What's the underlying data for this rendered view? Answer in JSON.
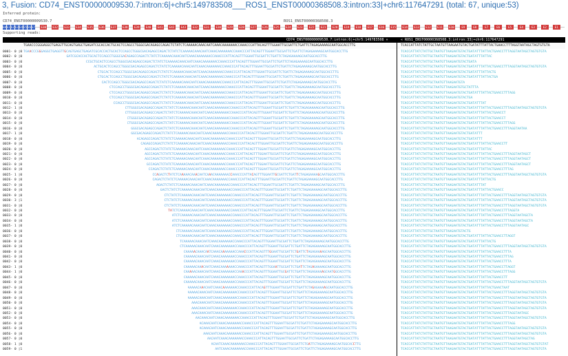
{
  "title": "3, Fusion: CD74_ENST00000009530.7:intron:6|+chr5:149783508___ROS1_ENST00000368508.3:intron:33|+chr6:117647291 (total: 67, unique:53)",
  "inferred_protein_label": "Inferred protein:",
  "transcript_left": "CD74_ENST00000009530.7",
  "transcript_right": "ROS1_ENST00000368508.3",
  "supporting_reads_label": "Supporting reads:",
  "exons_left": [
    "E0",
    "E1",
    "E2",
    "E3",
    "E4",
    "E5",
    "E6",
    "E7"
  ],
  "exons_right": [
    "E30",
    "E32",
    "E33",
    "E34",
    "E35",
    "E36",
    "E37",
    "E38",
    "E39",
    "E40",
    "E41",
    "E42",
    "E43",
    "E32",
    "E31",
    "E30",
    "E29",
    "E28",
    "E27",
    "E26",
    "E25",
    "E24",
    "E23",
    "E22",
    "E21",
    "E20",
    "E19",
    "E18",
    "E17",
    "E16",
    "E15",
    "E14",
    "E13",
    "E12",
    "E11",
    "E10",
    "E9",
    "E8",
    "E7",
    "E6",
    "E5",
    "E4",
    "E3",
    "E2",
    "E1"
  ],
  "header_left": "CD74_ENST00000009530.7:intron:6|+chr5:149783508 »",
  "header_right": "« ROS1_ENST00000368508.3:intron:33|+chr6:117647291",
  "ref_left": "TGAACCCGGGAGGCTGAGGTTGCAGTGAGCTGAGATCGCACCACTGCACTCCAGCCTGGGCGACAGAGCCAGACTCTATCTCAAAAACAAACAATCAAACAAAAAAACCAAACCCATTACAGTTTGGAATTGCGATTCTGATTCTAGAGAAAAGCAATGGCACCTTG",
  "ref_right": "TCACCATTATCTATTGCTAATGTTAAGAATGTACTGATATTTATTACTGAACCTTTAGGTAATAGCTAGTGTGTA",
  "reads": [
    {
      "id": "0001- 0 |0",
      "s": 0,
      "l": "TGAACCCGGGAGGCTGAGGTTGCAGTGAGCTGAGATCGCACCACTGCACTCCAGCCTGGGCGACAGAGCCAGACTCTATCTCAAAAACAAACAATCAAACAAAAAAACCAAACCCATTACAGTTTGGAATTGCGATTCTGATTCTAGAGAAAAGCAATGGCACCTTG",
      "r": "TCACCATTATCTATTGCTAATGTTAAGAATGTACTGATATTTATTACTGAACCTTTAGGTAATAGCTAGTGTGTA",
      "m": [
        3,
        8,
        21
      ]
    },
    {
      "id": "0002- 0 |0",
      "s": 22,
      "l": "GATCGCACCACTGCACTCCAGCCTGGGCGACAGAGCCAGACTCTATCTCAAAAACAAACAATCAAACAAAAAAACCAAACCCATTACAGTTTGGAATTGCGATTCTGATTCTAGAGAAAAGCAATGGCACCTTG",
      "r": "TCACCATTATCTATTGCTAATGTTAAGAATGTACTGATATTTATTAC",
      "m": [
        30
      ]
    },
    {
      "id": "0003- 0 |0",
      "s": 32,
      "l": "CCGCTGCACTCCAGCCTGGGCGACAGAGCCAGACTCTATCTCAAAAACAAACAATCAAACAAAAAAACCAAACCCATTACAGTTTGGAATTGCGATTCTGATTCTAGAGAAAAGCAATGGCACCTTG",
      "r": "TCACCATTATCTATTGCTAATGTTAAGAATGTACTGATA",
      "m": []
    },
    {
      "id": "0004- 0 |0",
      "s": 36,
      "l": "ACTGCACTCCAGCCTGGGCGACAGAGCCAGACTCTATCTCAAAAACAAACAATCAAACAAAAAAACCAAACCCATTACAGTTTGGAATTGCGATTCTGATTCTAGAGAAAAGCAATGGCACCTTG",
      "r": "TCACCATTATCTATTGCTAATGTTAAGAATGTACTGATATTTATTACTGAACCTTTAGGTAATAGCTAGTGTGTA",
      "m": []
    },
    {
      "id": "0005- 0 |0",
      "s": 38,
      "l": "CTGCACTCCAGCCTGGGCGACAGAGCCAGACTCTATCTCAAAAACAAACAATCAAACAAAAAAACCAAACCCATTACAGTTTGGAATTGCGATTCTGATTCTAGAGAAAAGCAATGGCACCTTG",
      "r": "TCACCATTATCTATTGCTAATGTTAAGAATGTACTGATATTTATTACTG",
      "m": []
    },
    {
      "id": "0006- 0 |0",
      "s": 38,
      "l": "CTGCACTCCAGCCTGGGCGACAGAGCCAGACTCTATCTCAAAAACAAACAATCAAACAAAAAAACCAAACCCATTACAGTTTGGAATTGCGATTCTGATTCTAGAGAAAAGCAATGGCACCTTG",
      "r": "TCACCATTATCTATTGCTAATGTTAAGAATGTACTGATATTTATTACTGA",
      "m": []
    },
    {
      "id": "0007- 0 |0",
      "s": 40,
      "l": "CACTCCAGCCTGGGCGACAGAGCCAGACTCTATCTCAAAAACAAACAATCAAACAAAAAAACCAAACCCATTACAGTTTGGAATTGCGATTCTGATTCTAGAGAAAAGCAATGGCACCTTG",
      "r": "TCACCATTATCTATTGCTAATGTTAAGAATGTA",
      "m": []
    },
    {
      "id": "0008- 0 |0",
      "s": 44,
      "l": "CTCCAGCCTGGGCGACAGAGCCAGACTCTATCTCAAAAACAAACAATCAAACAAAAAAACCAAACCCATTACAGTTTGGAATTGCGATTCTGATTCTAGAGAAAAGCAATGGCACCTTG",
      "r": "TCACCATTATCTATTGCTAATGTTAAGAATGTGCTATTTA",
      "m": []
    },
    {
      "id": "0009- 0 |0",
      "s": 44,
      "l": "CTCCAGCCTGGGCGACAGAGCCAGACTCTATCTCAAAAACAAACAATCAAACAAAAAAACCAAACCCATTACAGTTTGGAATTGCGATTCTGATTCTAGAGAAAAGCAATGGCACCTTG",
      "r": "TCACCATTATCTATTGCTAATGTTAAGAATGTACTGATATTTATTACTGAACCTTTAGG",
      "m": []
    },
    {
      "id": "0010- 0 |0",
      "s": 44,
      "l": "CTCCAGCCTGGGCGACAGAGCCAGACTCTATCTCAAAAACAAACAATCAAACAAAAAAACCAAACCCATTACAGTTTGGAATTGCGATTCTGATTCTAGAGAAAAGCAATGGCACCTTG",
      "r": "TCACCATTATCTATTGCTAATGTTAAGAATGTACTGA",
      "m": []
    },
    {
      "id": "0011- 0 |0",
      "s": 46,
      "l": "CCAGCCTGGGCGACAGAGCCAGACTCTATCTCAAAAACAAACAATCAAACAAAAAAACCAAACCCATTACAGTTTGGAATTGCGATTCTGATTCTAGAGAAAAGCAATGGCACCTTG",
      "r": "TCACCATTATCTATTGCTAATGTTAAGAATGTACTGATATTTAT",
      "m": []
    },
    {
      "id": "0012- 1 |0",
      "s": 52,
      "l": "CTTGGGCGACAGAGCCAGACTCTATCTCAAAAACAAACAATCAAACAAAAAAACCAAACCCATTACAGTTTGGAATTGCGATTCTGATTCTAGAGAAAAGCAATGGCACCTTG",
      "r": "TCACCATTATCTATTGCTAATGTTAAGAATGTACTGATATTTATTACTGAACCTTTAGGTAATAGCTAGTGTGTA",
      "m": []
    },
    {
      "id": "0013- 0 |0",
      "s": 52,
      "l": "CTTGGGCGACAGAGCCAGACTCTATCTCAAAAACAAACAATCAAACAAAAAAACCAAACCCATTACAGTTTGGAATTGCGATTCTGATTCTAGAGAAAAGCAATGGCACCTTG",
      "r": "TCACCATTATCTATTGCTAATGTTAAGAATGTACTGATATTTATTACTGAACCT",
      "m": []
    },
    {
      "id": "0014- 0 |0",
      "s": 53,
      "l": "CTGGGCGACAGAGCCAGACTCTATCTCAAAAACAAACAATCAAACAAAAAAACCAAACCCATTACAGTTTGGAATTGCGATTCTGATTCTAGAGAAAAGCAATGGCACCTTG",
      "r": "TCACCATTATCTATTGCTAATGTTAAGAATGTACTGATATTTATTACTGAACCT",
      "m": []
    },
    {
      "id": "0015- 0 |0",
      "s": 53,
      "l": "CTGGGCGACAGAGCCAGACTCTATCTCAAAAACAAACAATCAAACAAAAAAACCAAACCCATTACAGTTTGGAATTGCGATTCTGATTCTAGAGAAAAGCAATGGCACCTTG",
      "r": "TCACCATTATCTATTGCTAATGTTAAGAATGTACTGATATTTATTACTGAACCTTTAGG",
      "m": []
    },
    {
      "id": "0016- 0 |0",
      "s": 55,
      "l": "GGGCGACAGAGCCAGACTCTATCTCAAAAACAAACAATCAAACAAAAAAACCAAACCCATTACAGTTTGGAATTGCGATTCTGATTCTAGAGAAAAGCAATGGCACCTTG",
      "r": "TCACCATTATCTATTGCTAATGTTAAGAATGTACTGATATTTATTACTGAACCTTTAGGTAATAA",
      "m": []
    },
    {
      "id": "0017- 1 |0",
      "s": 55,
      "l": "GGCGACAGAGCCAGACTCTATCTCAAAAACAAACAATCAAACAAAAAAACCAAACCCATTACAGTTTGGAATTGCGATTCTGATTCTAGAGAAAAGCAATGGCACCTTG",
      "r": "TCACCATTATCTATTGCTAATGTTAAGAATGTACTGATATTT",
      "m": []
    },
    {
      "id": "0018- 0 |0",
      "s": 58,
      "l": "ACAGAGCCAGACTCTATCTCAAAAACAAACAATCAAACAAAAAAACCAAACCCATTACAGTTTGGAATTGCGATTCTGATTCTAGAGAAAAGCAATGGCACCTTG",
      "r": "TCACCATTATCTATTGCTAATGTTAAGAATGTACTGATATTT",
      "m": []
    },
    {
      "id": "0019- 0 |0",
      "s": 60,
      "l": "CAGAGCCAGACTCTATCTCAAAAACAAACAATCAAACAAAAAAACCAAACCCATTACAGTTTGGAATTGCGATTCTGATTCTAGAGAAAAGCAATGGCACCTTG",
      "r": "TCACCATTATCTATTGCTAATGTTAAGAATGTACTGATATTTATTACTGAACCTT",
      "m": []
    },
    {
      "id": "0020- 0 |0",
      "s": 62,
      "l": "AGCCAGACTCTATCTCAAAAACAAACAATCAAACAAAAAAACCAAACCCATTACAGTTTGGAATTGCGATTCTGATTCTAGAGAAAAGCAATGGCACCTTG",
      "r": "TCACCATTATCTATTGCTAATGTTAAGAATGTACTGATATTTATTAC",
      "m": []
    },
    {
      "id": "0021- 0 |0",
      "s": 62,
      "l": "AGCCAGACTCTATCTCAAAAACAAACAATCAAACAAAAAAACCAAACCCATTACAGTTTGGAATTGCGATTCTGATTCTAGAGAAAAGCAATGGCACCTTG",
      "r": "TCACCATTATCTATTGCTAATGTTAAGAATGTACTGATATTTATTACTGAACCTTTAGGTAATAGCT",
      "m": []
    },
    {
      "id": "0022- 0 |0",
      "s": 62,
      "l": "AGCCAGACTCTATCTCAAAAACAAACAATCAAACAAAAAAACCAAACCCATTACAGTTTGGAATTGCGATTCTGATTCTAGAGAAAAGCAATGGCACCTTG",
      "r": "TCACCATTATCTATTGCTAATGTTAAGAATGTACTGATATTTATTACTGAACCTTTAGGTAATAGCT",
      "m": []
    },
    {
      "id": "0023- 0 |0",
      "s": 63,
      "l": "GCCAGACTCTATCTCAAAAACAAACAATCAAACAAAAAAACCAAACCCATTACAGTTTGGAATTGCGATTCTGATTCTAGAGAAAAGCAATGGCACCTTG",
      "r": "TCACCATTATCTATTGCTAATGTTAAGAATGTACTGATATTTATTACTGAACCTTTAGGTAATAGCT",
      "m": []
    },
    {
      "id": "0024- 0 |0",
      "s": 64,
      "l": "CCAGACTCTATCTCAAAAACAAACAATCAAACAAAAAAACCAAACCCATTACAGTTTGGAATTGCGATTCTGATTCTAGAGAAAAGCAATGGCACCTTG",
      "r": "TCACCATTATCTATTGCTAATGTTAAGAATGTACTGATATTTATTACTGAACCTTTAG",
      "m": []
    },
    {
      "id": "0025- 1 |0",
      "s": 66,
      "l": "CCAGACTCTATCTCAAAAACAAACAATCAAACAAAAAAACCAAACCCATTACAGTTTGGAATTGCGATTCTGATTCTAGAGAAAAGCAATGGCACCTTG",
      "r": "TCACCATTATCTATTGCTAATGTTAAGAATGTACTGATATTTATTACTGAACCTTTAGGTAATAGCTAGTGTGTA",
      "m": [
        2,
        8,
        15,
        22,
        29,
        40,
        51,
        63,
        74,
        85
      ]
    },
    {
      "id": "0026- 0 |0",
      "s": 66,
      "l": "CAGACTCTATCTCAAAAACAAACAATCAAACAAAAAAACCAAACCCATTACAGTTTGGAATTGCGATTCTGATTCTAGAGAAAAGCAATGGCACCTTG",
      "r": "TCACCATTATCTATTGCTAATGTTAAGAATGTACTGATATTTATTACTG",
      "m": []
    },
    {
      "id": "0027- 0 |0",
      "s": 68,
      "l": "AGACTCTATCTCAAAAACAAACAATCAAACAAAAAAACCAAACCCATTACAGTTTGGAATTGCGATTCTGATTCTAGAGAAAAGCAATGGCACCTTG",
      "r": "TCACCATTATCTATTGCTAATGTTAAGAATGTACTGATATTTAT",
      "m": []
    },
    {
      "id": "0028- 0 |0",
      "s": 70,
      "l": "GACTCTATCTCAAAAACAAACAATCAAACAAAAAAACCAAACCCATTACAGTTTGGAATTGCGATTCTGATTCTAGAGAAAAGCAATGGCACCTTG",
      "r": "TCACCATTATCTATTGCTAATGTTAAGAATGTACTGATATTTATTACTGAACC",
      "m": []
    },
    {
      "id": "0029- 0 |0",
      "s": 72,
      "l": "CTCTATCTCAAAAACAAACAATCAAACAAAAAAACCAAACCCATTACAGTTTGGAATTGCGATTCTGATTCTAGAGAAAAGCAATGGCACCTTG",
      "r": "TCACCATTATCTATTGCTAATGTTAAGAATGTACTGATATTTATTACTGAACCTTTAGGTAATAGCTAGTGTGTA",
      "m": []
    },
    {
      "id": "0030- 3 |1",
      "s": 72,
      "l": "CTCTATCTCAAAAACAAACAATCAAACAAAAAAACCAAACCCATTACAGTTTGGAATTGCGATTCTGATTCTAGAGAAAAGCAATGGCACCTTG",
      "r": "TCACCATTATCTATTGCTAATGTTAAGAATGTACTGATATTTATTACTGAACCTTTAGGTAATAGCTAGTGTGTA",
      "m": []
    },
    {
      "id": "0031- 0 |0",
      "s": 72,
      "l": "CTCTATCTCAAAAACAAACAATCAAACAAAAAAACCAAACCCATTACAGTTTGGAATTGCGATTCTGATTCTAGAGAAAAGCAATGGCACCTTG",
      "r": "TCACCATTATCTATTGCTAATGTTAAGAATGTACTGATATTTATTACTGAACCTTTAGGTAATAGCTAGTGTGTA",
      "m": []
    },
    {
      "id": "0032- 0 |0",
      "s": 74,
      "l": "TATCTCAAAAACAAACAATCAAACAAAAAAACCAAACCCATTACAGTTTGGAATTGCGATTCTGATTCTAGAGAAAAGCAATGGCACCTTG",
      "r": "TCACCATTATCTATTGCTAATGTTAAGAATGTACTGATATTTATTACTGAACCTTTAGGTA",
      "m": [
        0,
        1
      ]
    },
    {
      "id": "0033- 0 |0",
      "s": 76,
      "l": "ATCTCAAAAACAAACAATCAAACAAAAAAACCAAACCCATTACAGTTTGGAATTGCGATTCTGATTCTAGAGAAAAGCAATGGCACCTTG",
      "r": "TCACCATTATCTATTGCTAATGTTAAGAATGTACTGATATTTATTACTGAACCTTTAGGTAATAGCTA",
      "m": []
    },
    {
      "id": "0034- 0 |0",
      "s": 76,
      "l": "ATCTCAAAAACAAACAATCAAACAAAAAAACCAAACCCATTACAGTTTGGAATTGCGATTCTGATTCTAGAGAAAAGCAATGGCACCTTG",
      "r": "TCACCATTATCTATTGCTAATGTTAAGAATGTACTGATATTTATTACTGAACCTTTAGGTAATAGCTA",
      "m": []
    },
    {
      "id": "0035- 1 |0",
      "s": 76,
      "l": "ATCTCAAAAACAAACAATCAAACAAAAAAACCAAACCCATTACAGTTTGGAATTGCGATTCTGATTCTAGAGAAAAGCAATGGCACCTTG",
      "r": "TCACCATTATCTATTGCTAATGTTAAGAATGTACTGATATTTATTACTGAACCTTTAGGTAATAGC",
      "m": []
    },
    {
      "id": "0036- 0 |0",
      "s": 78,
      "l": "CTCAAAAACAAACAATCAAACAAAAAAACCAAACCCATTACAGTTTGGAATTGCGATTCTGATTCTAGAGAAAAGCAATGGCACCTTG",
      "r": "TCACCATTATCTATTGCTAATGTTAAGAATGTACTG",
      "m": []
    },
    {
      "id": "0037- 0 |0",
      "s": 78,
      "l": "CTCAAAAACAAACAATCAAACAAAAAAACCAAACCCATTACAGTTTGGAATTGCGATTCTGATTCTAGAGAAAAGCAATGGCACCTTG",
      "r": "TCACCATTATCTATTGCTAATGTTAAGAATGTACTGATATTTATTACTGAACCTTAGGT",
      "m": []
    },
    {
      "id": "0038- 0 |0",
      "s": 80,
      "l": "TCAAAAACAAACAATCAAACAAAAAAACCAAACCCATTACAGTTTGGAATTGCGATTCTGATTCTAGAGAAAAGCAATGGCACCTTG",
      "r": "TCACCATTATCTATTGCTAATGTTAAGAATGTACTGATATTTATTACTG",
      "m": []
    },
    {
      "id": "0039- 0 |0",
      "s": 80,
      "l": "CTCAAAAACAAACAATCAAACAAAAAAACCAAACCCATTACAGTTTGGAATTGCGATTCTGATTCTAGAGAAAAGCAATGGCACCTTG",
      "r": "TCACCATTATCTATTGCTAATGTTAAGAATGTACTGATATTTATTACTGAACCTTTAGGTAATAGCTAGTGTGTA",
      "m": []
    },
    {
      "id": "0040- 0 |0",
      "s": 82,
      "l": "CAAAAACAAACAATCAAACAAAAAAACCAAACCCATTACAGTTTGGAATTGCGATTCTGATTCTAGAGAAAAGCAATGGCACCTTG",
      "r": "TCACCATTATCTATTGCTAATGTTAAGAATGTACTGATATTTATTACTGAACCTTTA",
      "m": [
        5,
        12,
        20,
        31,
        44,
        58,
        63,
        70
      ]
    },
    {
      "id": "0041- 0 |0",
      "s": 82,
      "l": "CAAAAACAAACAATCAAACAAAAAAACCAAACCCATTACAGTTTGGAATTGCGATTCTGATTCTAGAGAAAAGCAATGGCACCTTG",
      "r": "TCACCATTATCTATTGCTAATGTTAAGAATGTACTGATATTTATTACTGAACCTTTAG",
      "m": []
    },
    {
      "id": "0042- 0 |0",
      "s": 82,
      "l": "CAAAAACAAACAATCAAACAAAAAAACCAAACCCATTACAGTTTGGAATTGCGATTCTGATTCTAGAGAAAAGCAATGGCACCTTG",
      "r": "TCACCATTATCTATTGCTAATGTTAAGAATGTACTGATATTTATTACTGAACCTTTA",
      "m": []
    },
    {
      "id": "0043- 1 |0",
      "s": 82,
      "l": "CAAAAACAAACAATCAAACAAAAAAACCAAACCCATTACAGTTTGGAATTGCGATTCTGATTCTAGAGAAAAGCAATGGCACCTTG",
      "r": "TCACCATTATCTATTGCTAATGTTAAGAATGTACTGATATTTATTACTGAACCTTAGGT",
      "m": [
        9,
        22,
        47,
        60,
        66
      ]
    },
    {
      "id": "0044- 1 |0",
      "s": 82,
      "l": "CAAAAACAAACAATCAAACAAAAAAACCAAACCCATTACAGTTTGGAATTGCGATTCTGATTCTAGAGAAAAGCAATGGCACCTTG",
      "r": "TCACCATTATCTATTGCTAATGTTAAGAATGTACTGATATTTATTACTGAACCTTTAGG",
      "m": [
        3,
        30,
        52,
        71,
        77
      ]
    },
    {
      "id": "0045- 0 |0",
      "s": 82,
      "l": "CAAAAACAAACAATCAAACAAAAAAACCAAACCCATTACAGTTTGGAATTGCGATTCTGATTCTAGAGAAAAGCAATGGCACCTTG",
      "r": "TCACCATTATCTATTGCTAATGTTAAGAATGTACTGATATTTATTACTGAACCTT",
      "m": []
    },
    {
      "id": "0046- 0 |0",
      "s": 82,
      "l": "CAAAAACAAACAATCAAACAAAAAAACCAAACCCATTACAGTTTGGAATTGCGATTCTGATTCTAGAGAAAAGCAATGGCACCTTG",
      "r": "TCACCATTATCTATTGCTAATGTTAAGAATGTACTGATATTTATTACTGAACCTTTAGGTAATAGCTAGTGTGTA",
      "m": []
    },
    {
      "id": "0047- 0 |0",
      "s": 84,
      "l": "AAAAACAAACAATCAAACAAAAAAACCAAACCCATTACAGTTTGGAATTGCGATTCTGATTCTAGAGAAAAGCAATGGCACCTTG",
      "r": "TCACCATTATCTATTGCTAATGTTAAGAATGTACTGATATTTATTACTGAACTAAT",
      "m": [
        7,
        18,
        39,
        64,
        70
      ]
    },
    {
      "id": "0048- 0 |0",
      "s": 84,
      "l": "AAAAACAAACAATCAAACAAAAAAACCAAACCCATTACAGTTTGGAATTGCGATTCTGATTCTAGAGAAAAGCAATGGCACCTTG",
      "r": "TCACCATTATCTATTGCTAATGTTAAGAATGTACTGATATTTATTACTGAACCTTTAGGTAATAGCTAGTGTGTA",
      "m": []
    },
    {
      "id": "0049- 0 |0",
      "s": 84,
      "l": "AAAAACAAACAATCAAACAAAAAAACCAAACCCATTACAGTTTGGAATTGCGATTCTGATTCTAGAGAAAAGCAATGGCACCTTG",
      "r": "TCACCATTATCTATTGCTAATGTTAAGAATGTACTGATATTTATTACTGAACCTTTAGGTAATAGCTAGTGTGTA",
      "m": []
    },
    {
      "id": "0050- 0 |0",
      "s": 86,
      "l": "AAACAAACAATCAAACAAAAAAACCAAACCCATTACAGTTTGGAATTGCGATTCTGATTCTAGAGAAAAGCAATGGCACCTTG",
      "r": "TCACCATTATCTATTGCTAATGTTAAGAATGTACTGATATTTATTACTGAACCTTTAGGTAATAGCTAGTGTGTA",
      "m": []
    },
    {
      "id": "0051- 0 |0",
      "s": 86,
      "l": "AAACAAACAATCAAACAAAAAAACCAAACCCATTACAGTTTGGAATTGCGATTCTGATTCTAGAGAAAAGCAATGGCACCTTG",
      "r": "TCACCATTATCTATTGCTAATGTTAAGAATGTACTGATATTTATTACTGAACCTTTAGGTAATAGCTAGTGTGTA",
      "m": []
    },
    {
      "id": "0052- 0 |0",
      "s": 86,
      "l": "AAACAAACAATCAAACAAAAAAACCAAACCCATTACAGTTTGGAATTGCGATTCTGATTCTAGAGAAAAGCAATGGCACCTTG",
      "r": "TCACCATTATCTATTGCTAATGTTAAGAATGTACTGATATTTATTACTGAACCTTTAGGTAATAGC",
      "m": []
    },
    {
      "id": "0053- 0 |0",
      "s": 88,
      "l": "AACAAACAATCAAACAAAAAAACCAAACCCATTACAGTTTGGAATTGCGATTCTGATTCTAGAGAAAAGCAATGGCACCTTG",
      "r": "TCACCATTATCTATTGCTAATGTTAAGAATGTACTGATATTTATTACTGAACCTTTAGGTAATAGCTAGTGTGTA",
      "m": []
    },
    {
      "id": "0054- 0 |0",
      "s": 90,
      "l": "ACAAACAATCAAACAAAAAAACCAAACCCATTACAGTTTGGAATTGCGATTCTGATTCTAGAGAAAAGCAATGGCACCTTG",
      "r": "TCACCATTATCTATTGCTAATGTTAAGAATGTACTGATATTTATTACTGAACCTTTAGG",
      "m": []
    },
    {
      "id": "0055- 0 |0",
      "s": 90,
      "l": "ACAAACAATCAAACAAAAAAACCAAACCCATTACAGTTTGGAATTGCGATTCTGATTCTAGAGAAAAGCAATGGCACCTTG",
      "r": "TCACCATTATCTATTGCTAATGTTAAGAATGTACTGATATTTATTACTGAACCTTTAGGTAATAGCTAGTGTGTA",
      "m": []
    },
    {
      "id": "0056- 0 |0",
      "s": 92,
      "l": "AAACAATCAAACAAAAAAACCAAACCCATTACAGTTTGGAATTGCGATTCTGATTCTAGAGAAAAGCAATGGCACCTTG",
      "r": "TCACCATTATCTATTGCTAATGTTAAGAATGTACTGATATTTATTACTGAACCTTTAGGTAATAGCTAGTGTGTA",
      "m": []
    },
    {
      "id": "0057- 0 |0",
      "s": 94,
      "l": "AACAATCAAACAAAAAAACCAAACCCATTACAGTTTGGAATTGCGATTCTGATTCTAGAGAAAAGCAATGGCACCTTG",
      "r": "TCACCATTATCTATTGCTAATGTTAAGAATGTACTGATATTTATTACTGAACCTTTAGGTAATAGCTAG",
      "m": []
    },
    {
      "id": "0058- 1 |0",
      "s": 96,
      "l": "ACAATCAAACAAAAAAACCAAACCCATTACAGTTTGGAATTGCGATTCTGATTCTAGAGAAAAGCAATGGCACCTTG",
      "r": "TCACCATTATCTATTGCTAATGTTAAGAATGTACTGATATTTATTACTGAACCTTTAGGTAATAGCTAGTGTGTAT",
      "m": [
        50,
        73
      ]
    },
    {
      "id": "0059- 0 |1",
      "s": 98,
      "l": "AATCAAACAAAAAAACCAAACCCATTACAGTTTGGAATTGCGATTCTGATTCTAGAGAAAAGCAATGGCACCTTG",
      "r": "TCACCATTATCTATTGCTAATGTTAAGAATGTACTGATATTTATTACTGAACCTTTAGGTAATAGCTAGTGTGTA",
      "m": []
    }
  ],
  "colors": {
    "cd74_exon": "#2b59c3",
    "ros1_exon": "#d23a3a",
    "read_left": "#4fa3e0",
    "read_right": "#3fb4cf",
    "mismatch": "#d03232"
  }
}
